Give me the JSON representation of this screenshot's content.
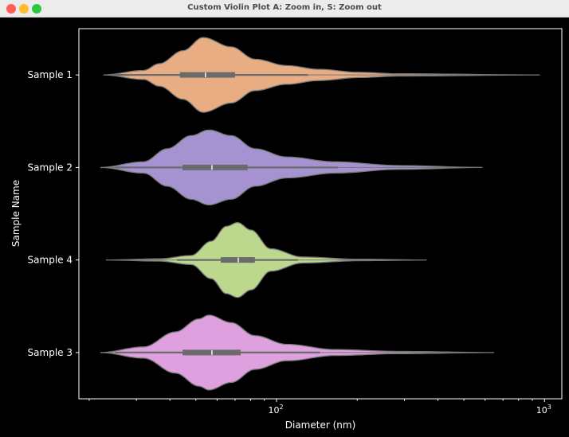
{
  "window": {
    "title": "Custom Violin Plot A: Zoom in, S: Zoom out"
  },
  "chart_data": {
    "type": "violin",
    "orientation": "horizontal",
    "xlabel": "Diameter (nm)",
    "ylabel": "Sample Name",
    "xscale": "log",
    "xlim": [
      18.3,
      1160
    ],
    "xticks": [
      {
        "value": 100,
        "base": "10",
        "exp": "2"
      },
      {
        "value": 1000,
        "base": "10",
        "exp": "3"
      }
    ],
    "grid": false,
    "series": [
      {
        "name": "Sample 1",
        "color": "#e8ad83",
        "min": 22.6,
        "max": 960,
        "whisker_low": 24.7,
        "q1": 43.6,
        "median": 54.3,
        "q3": 70,
        "whisker_high": 131,
        "density_x": [
          22.6,
          31.9,
          36.5,
          44.8,
          53.2,
          67.7,
          83.1,
          109,
          144,
          202,
          285,
          960
        ],
        "density": [
          0,
          0.12,
          0.3,
          0.65,
          1,
          0.75,
          0.42,
          0.25,
          0.15,
          0.07,
          0.03,
          0
        ]
      },
      {
        "name": "Sample 2",
        "color": "#a493d0",
        "min": 22,
        "max": 587,
        "whisker_low": 25,
        "q1": 44.6,
        "median": 57.4,
        "q3": 78,
        "whisker_high": 169,
        "density_x": [
          22,
          31.9,
          39.1,
          48,
          55.9,
          67.7,
          83.1,
          109,
          165,
          285,
          587
        ],
        "density": [
          0,
          0.15,
          0.5,
          0.85,
          1,
          0.85,
          0.5,
          0.28,
          0.15,
          0.05,
          0
        ]
      },
      {
        "name": "Sample 4",
        "color": "#bcd88c",
        "min": 23.1,
        "max": 363,
        "whisker_low": 42.5,
        "q1": 61.9,
        "median": 72,
        "q3": 83,
        "whisker_high": 120,
        "density_x": [
          23.1,
          36.5,
          48,
          57,
          65,
          71.5,
          80.3,
          95,
          125,
          202,
          363
        ],
        "density": [
          0,
          0.03,
          0.12,
          0.5,
          0.9,
          1,
          0.8,
          0.3,
          0.08,
          0.02,
          0
        ]
      },
      {
        "name": "Sample 3",
        "color": "#dea0de",
        "min": 22,
        "max": 648,
        "whisker_low": 25,
        "q1": 44.6,
        "median": 57.4,
        "q3": 73.5,
        "whisker_high": 145,
        "density_x": [
          22,
          31.9,
          41.9,
          51.4,
          55.9,
          67.7,
          83.1,
          109,
          165,
          285,
          648
        ],
        "density": [
          0,
          0.15,
          0.55,
          0.9,
          1,
          0.8,
          0.45,
          0.22,
          0.08,
          0.03,
          0
        ]
      }
    ]
  }
}
